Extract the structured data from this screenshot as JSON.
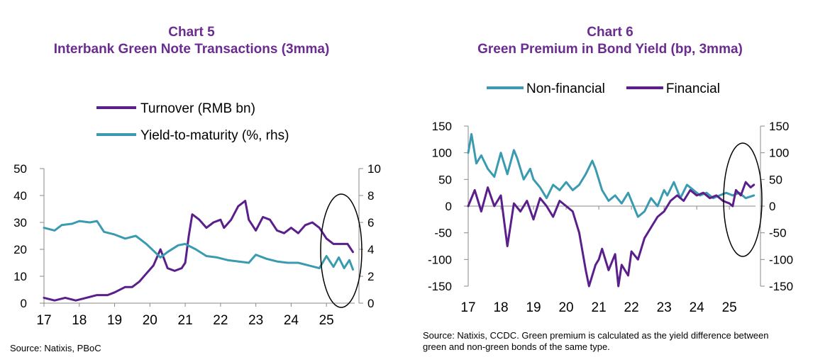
{
  "chart_data": [
    {
      "type": "line",
      "title": "Chart 5",
      "subtitle": "Interbank Green Note Transactions (3mma)",
      "legend_position": "top",
      "x_ticks": [
        "17",
        "18",
        "19",
        "20",
        "21",
        "22",
        "23",
        "24",
        "25"
      ],
      "x_range": [
        2017,
        2025.8
      ],
      "y_left": {
        "ticks": [
          "0",
          "10",
          "20",
          "30",
          "40",
          "50"
        ],
        "range": [
          0,
          50
        ]
      },
      "y_right": {
        "ticks": [
          "0",
          "2",
          "4",
          "6",
          "8",
          "10"
        ],
        "range": [
          0,
          10
        ]
      },
      "annotation": "ellipse highlighting 2025",
      "source": "Source: Natixis, PBoC",
      "series": [
        {
          "name": "Turnover (RMB bn)",
          "axis": "left",
          "color": "#5b1f8c",
          "x": [
            2017.0,
            2017.3,
            2017.6,
            2017.9,
            2018.2,
            2018.5,
            2018.8,
            2019.0,
            2019.3,
            2019.5,
            2019.7,
            2019.9,
            2020.1,
            2020.3,
            2020.5,
            2020.7,
            2020.9,
            2021.0,
            2021.1,
            2021.2,
            2021.4,
            2021.6,
            2021.8,
            2022.0,
            2022.1,
            2022.3,
            2022.5,
            2022.7,
            2022.8,
            2023.0,
            2023.2,
            2023.4,
            2023.6,
            2023.8,
            2024.0,
            2024.2,
            2024.4,
            2024.6,
            2024.8,
            2025.0,
            2025.2,
            2025.4,
            2025.6,
            2025.75
          ],
          "y": [
            2,
            1,
            2,
            1,
            2,
            3,
            3,
            4,
            6,
            6,
            8,
            11,
            14,
            20,
            13,
            12,
            13,
            15,
            25,
            33,
            31,
            28,
            30,
            31,
            28,
            31,
            36,
            38,
            31,
            27,
            32,
            31,
            27,
            26,
            28,
            26,
            29,
            30,
            28,
            24,
            22,
            22,
            22,
            19
          ]
        },
        {
          "name": "Yield-to-maturity (%, rhs)",
          "axis": "right",
          "color": "#3a9bb0",
          "x": [
            2017.0,
            2017.3,
            2017.5,
            2017.8,
            2018.0,
            2018.3,
            2018.5,
            2018.7,
            2019.0,
            2019.3,
            2019.6,
            2019.9,
            2020.1,
            2020.3,
            2020.5,
            2020.8,
            2021.0,
            2021.3,
            2021.6,
            2021.9,
            2022.2,
            2022.5,
            2022.8,
            2023.0,
            2023.3,
            2023.6,
            2023.9,
            2024.2,
            2024.5,
            2024.8,
            2025.0,
            2025.2,
            2025.35,
            2025.5,
            2025.65,
            2025.75
          ],
          "y": [
            5.6,
            5.4,
            5.8,
            5.9,
            6.1,
            6.0,
            6.1,
            5.3,
            5.1,
            4.8,
            5.0,
            4.4,
            3.9,
            3.4,
            3.8,
            4.3,
            4.4,
            4.0,
            3.5,
            3.4,
            3.2,
            3.1,
            3.0,
            3.6,
            3.3,
            3.1,
            3.0,
            3.0,
            2.8,
            2.6,
            3.5,
            2.7,
            3.4,
            2.6,
            3.2,
            2.5
          ]
        }
      ]
    },
    {
      "type": "line",
      "title": "Chart 6",
      "subtitle": "Green Premium in Bond Yield (bp, 3mma)",
      "legend_position": "top",
      "x_ticks": [
        "17",
        "18",
        "19",
        "20",
        "21",
        "22",
        "23",
        "24",
        "25"
      ],
      "x_range": [
        2017,
        2025.8
      ],
      "y_left": {
        "ticks": [
          "-150",
          "-100",
          "-50",
          "0",
          "50",
          "100",
          "150"
        ],
        "range": [
          -150,
          150
        ]
      },
      "y_right": {
        "ticks": [
          "-150",
          "-100",
          "-50",
          "0",
          "50",
          "100",
          "150"
        ],
        "range": [
          -150,
          150
        ]
      },
      "annotation": "ellipse highlighting 2025",
      "source": "Source: Natixis, CCDC. Green premium is calculated as the yield difference between green and non-green bonds of the same type.",
      "series": [
        {
          "name": "Non-financial",
          "axis": "left",
          "color": "#3a9bb0",
          "x": [
            2017.0,
            2017.1,
            2017.25,
            2017.4,
            2017.6,
            2017.8,
            2018.0,
            2018.2,
            2018.4,
            2018.5,
            2018.7,
            2018.9,
            2019.0,
            2019.2,
            2019.4,
            2019.6,
            2019.8,
            2020.0,
            2020.2,
            2020.4,
            2020.6,
            2020.8,
            2020.9,
            2021.1,
            2021.3,
            2021.5,
            2021.7,
            2021.9,
            2022.0,
            2022.2,
            2022.4,
            2022.6,
            2022.8,
            2023.0,
            2023.1,
            2023.3,
            2023.5,
            2023.7,
            2023.9,
            2024.1,
            2024.3,
            2024.5,
            2024.7,
            2024.9,
            2025.1,
            2025.3,
            2025.5,
            2025.75
          ],
          "y": [
            100,
            135,
            80,
            95,
            70,
            55,
            100,
            60,
            105,
            90,
            50,
            70,
            50,
            35,
            15,
            40,
            30,
            45,
            30,
            40,
            60,
            85,
            70,
            30,
            10,
            20,
            5,
            25,
            10,
            -20,
            -10,
            15,
            0,
            30,
            20,
            45,
            15,
            40,
            30,
            20,
            25,
            15,
            20,
            25,
            20,
            25,
            15,
            20
          ]
        },
        {
          "name": "Financial",
          "axis": "left",
          "color": "#5b1f8c",
          "x": [
            2017.0,
            2017.2,
            2017.4,
            2017.6,
            2017.8,
            2018.0,
            2018.2,
            2018.4,
            2018.6,
            2018.8,
            2019.0,
            2019.2,
            2019.4,
            2019.6,
            2019.8,
            2020.0,
            2020.2,
            2020.4,
            2020.6,
            2020.7,
            2020.9,
            2021.0,
            2021.1,
            2021.3,
            2021.5,
            2021.6,
            2021.7,
            2021.9,
            2022.0,
            2022.2,
            2022.4,
            2022.6,
            2022.8,
            2023.0,
            2023.2,
            2023.4,
            2023.6,
            2023.8,
            2024.0,
            2024.2,
            2024.4,
            2024.6,
            2024.8,
            2025.0,
            2025.1,
            2025.2,
            2025.35,
            2025.5,
            2025.65,
            2025.75
          ],
          "y": [
            0,
            30,
            -10,
            35,
            0,
            20,
            -75,
            5,
            -10,
            10,
            -25,
            15,
            0,
            -20,
            10,
            0,
            -10,
            -50,
            -120,
            -150,
            -110,
            -100,
            -80,
            -120,
            -90,
            -150,
            -110,
            -130,
            -85,
            -100,
            -60,
            -40,
            -20,
            -10,
            10,
            20,
            10,
            30,
            20,
            25,
            15,
            20,
            10,
            5,
            0,
            30,
            20,
            45,
            35,
            40
          ]
        }
      ]
    }
  ]
}
